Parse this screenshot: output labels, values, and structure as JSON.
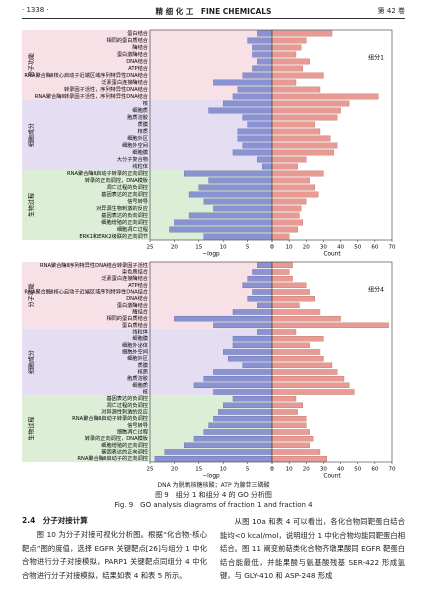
{
  "header": {
    "page": "· 1338 ·",
    "journal": "精 细 化 工　FINE CHEMICALS",
    "volume": "第 42 卷"
  },
  "chart_data": [
    {
      "type": "bar",
      "annotation": "组分1",
      "series": [
        {
          "name": "−logp",
          "color": "#8a93d2",
          "xlim": [
            25,
            0
          ],
          "xticks": [
            25,
            20,
            15,
            10,
            5,
            0
          ]
        },
        {
          "name": "Count",
          "color": "#e99a92",
          "xlim": [
            0,
            70
          ],
          "xticks": [
            0,
            10,
            20,
            30,
            40,
            50,
            60,
            70
          ]
        }
      ],
      "groups": [
        {
          "label": "分子功能",
          "color": "#f8e0e7",
          "categories": [
            "蛋白结合",
            "相同的蛋白质结合",
            "酶结合",
            "蛋白激酶结合",
            "DNA结合",
            "ATP结合",
            "RNA聚合酶Ⅱ核心启动子近端区域序列特异性DNA结合",
            "泛素蛋白连接酶结合",
            "转录因子活性，序列特异性DNA结合",
            "RNA聚合酶Ⅱ转录因子活性，序列特异性DNA结合"
          ],
          "neglogp": [
            3,
            5,
            4,
            4,
            3,
            4,
            6,
            12,
            7,
            8
          ],
          "count": [
            35,
            20,
            17,
            14,
            22,
            18,
            30,
            14,
            28,
            62
          ]
        },
        {
          "label": "细胞成分",
          "color": "#e5def2",
          "categories": [
            "核",
            "细胞质",
            "胞质溶胶",
            "质膜",
            "核质",
            "细胞外区",
            "细胞外空间",
            "细胞膜",
            "大分子复合物",
            "线粒体"
          ],
          "neglogp": [
            10,
            13,
            6,
            5,
            7,
            7,
            6,
            8,
            3,
            2
          ],
          "count": [
            45,
            40,
            38,
            25,
            28,
            34,
            38,
            36,
            20,
            15
          ]
        },
        {
          "label": "生物过程",
          "color": "#dcefd6",
          "categories": [
            "RNA聚合酶Ⅱ启动子转录的正向调控",
            "转录的正向调控，DNA模板",
            "凋亡过程的负调控",
            "基因表达的正向调控",
            "信号转导",
            "对异源生物刺激的反应",
            "基因表达的负向调控",
            "细胞增殖的正向调控",
            "细胞凋亡过程",
            "ERK1和ERK2级联的正向调节"
          ],
          "neglogp": [
            18,
            13,
            15,
            17,
            14,
            12,
            17,
            20,
            21,
            14
          ],
          "count": [
            30,
            22,
            25,
            27,
            20,
            17,
            16,
            18,
            15,
            10
          ]
        }
      ]
    },
    {
      "type": "bar",
      "annotation": "组分4",
      "series": [
        {
          "name": "−logp",
          "color": "#8a93d2",
          "xlim": [
            25,
            0
          ],
          "xticks": [
            25,
            20,
            15,
            10,
            5,
            0
          ]
        },
        {
          "name": "Count",
          "color": "#e99a92",
          "xlim": [
            0,
            70
          ],
          "xticks": [
            0,
            10,
            20,
            30,
            40,
            50,
            60,
            70
          ]
        }
      ],
      "groups": [
        {
          "label": "分子功能",
          "color": "#f8e0e7",
          "categories": [
            "RNA聚合酶Ⅱ序列特异性DNA结合转录因子活性",
            "染色质结合",
            "泛素蛋白连接酶结合",
            "ATP结合",
            "RNA聚合酶Ⅱ核心启动子近端区域序列特异性DNA结合",
            "DNA结合",
            "蛋白激酶结合",
            "酶结合",
            "相同的蛋白质结合",
            "蛋白质结合"
          ],
          "neglogp": [
            3,
            4,
            5,
            6,
            4,
            5,
            3,
            8,
            20,
            12
          ],
          "count": [
            12,
            10,
            12,
            20,
            22,
            25,
            16,
            28,
            40,
            68
          ]
        },
        {
          "label": "细胞成分",
          "color": "#e5def2",
          "categories": [
            "线粒体",
            "细胞膜",
            "细胞外泌体",
            "细胞外空间",
            "细胞外区",
            "质膜",
            "核质",
            "胞质溶胶",
            "细胞质",
            "核"
          ],
          "neglogp": [
            3,
            8,
            8,
            10,
            9,
            6,
            12,
            14,
            16,
            12
          ],
          "count": [
            14,
            30,
            22,
            28,
            30,
            35,
            38,
            42,
            45,
            48
          ]
        },
        {
          "label": "生物过程",
          "color": "#dcefd6",
          "categories": [
            "基因表达的负调控",
            "凋亡过程的负调控",
            "对异源性刺激的反应",
            "RNA聚合酶Ⅱ启动子转录的负调控",
            "信号转导",
            "细胞凋亡过程",
            "转录的正向调控，DNA模板",
            "细胞增殖的正向调控",
            "基因表达的正向调控",
            "RNA聚合酶Ⅱ启动子的正向调控"
          ],
          "neglogp": [
            8,
            10,
            11,
            12,
            13,
            14,
            16,
            18,
            22,
            24
          ],
          "count": [
            14,
            18,
            15,
            20,
            20,
            22,
            24,
            22,
            28,
            32
          ]
        }
      ]
    }
  ],
  "figure": {
    "note": "DNA 为脱氧核糖核酸；ATP 为腺苷三磷酸",
    "caption_cn": "图 9　组分 1 和组分 4 的 GO 分析图",
    "caption_en": "Fig. 9　GO analysis diagrams of fraction 1 and fraction 4"
  },
  "body": {
    "section": "2.4　分子对接计算",
    "left": "图 10 为分子对接可视化分析图。根据“化合物-核心靶点”图的度值，选择 EGFR 关键靶点[26]与组分 1 中化合物进行分子对接模拟，PARP1 关键靶点同组分 4 中化合物进行分子对接模拟，结果如表 4 和表 5 所示。",
    "right": "从图 10a 和表 4 可以看出，各化合物同靶蛋白结合能均<0 kcal/mol，说明组分 1 中化合物均能同靶蛋白相结合。图 11 阐变前萜类化合物齐墩果酸同 EGFR 靶蛋白结合能最低，并能果酸与氨基酸残基 SER-422 形成氢键，与 GLY-410 和 ASP-248 形成"
  }
}
